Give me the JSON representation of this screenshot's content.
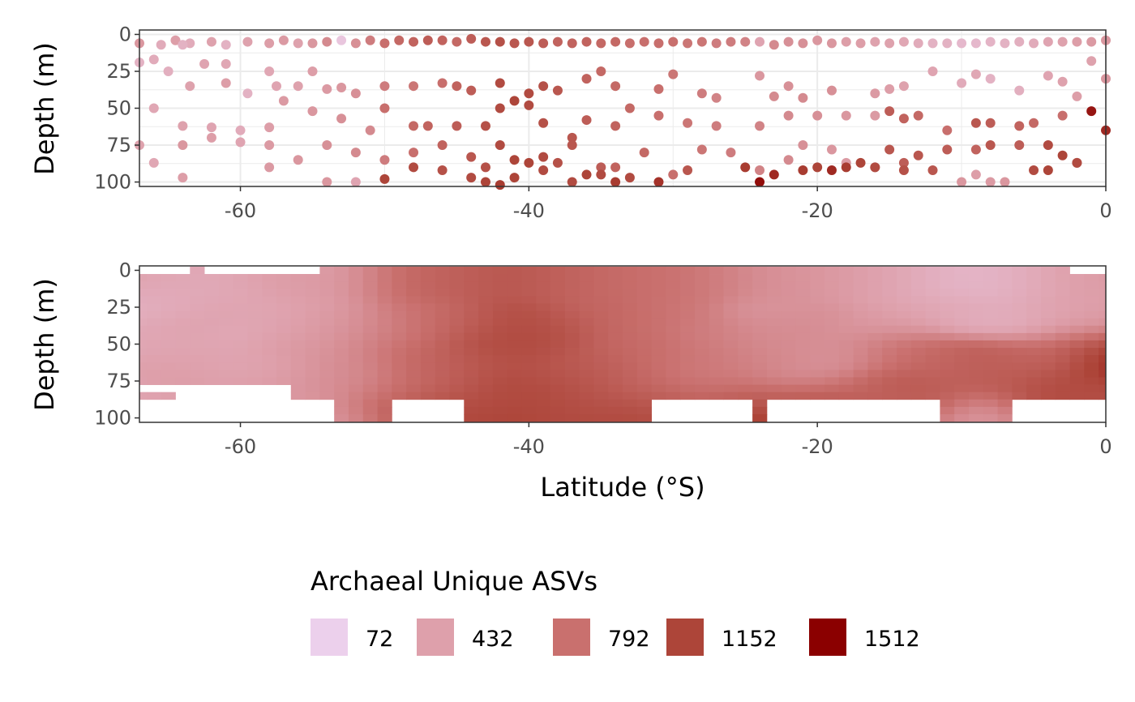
{
  "chart_data": [
    {
      "type": "scatter",
      "ylabel": "Depth (m)",
      "xlabel": "",
      "xlim": [
        -67,
        0
      ],
      "ylim": [
        103,
        -3
      ],
      "x_ticks": [
        -60,
        -40,
        -20,
        0
      ],
      "x_tick_labels": [
        "-60",
        "-40",
        "-20",
        "0"
      ],
      "y_ticks": [
        0,
        25,
        50,
        75,
        100
      ],
      "y_tick_labels": [
        "0",
        "25",
        "50",
        "75",
        "100"
      ],
      "grid": true,
      "color_variable": "Archaeal Unique ASVs",
      "points": [
        [
          -67,
          6,
          500
        ],
        [
          -65.5,
          7,
          350
        ],
        [
          -64.5,
          4,
          450
        ],
        [
          -63.5,
          6,
          350
        ],
        [
          -62,
          5,
          420
        ],
        [
          -61,
          7,
          300
        ],
        [
          -59.5,
          5,
          420
        ],
        [
          -58,
          6,
          450
        ],
        [
          -57,
          4,
          480
        ],
        [
          -56,
          6,
          420
        ],
        [
          -55,
          6,
          500
        ],
        [
          -54,
          5,
          600
        ],
        [
          -53,
          4,
          150
        ],
        [
          -52,
          6,
          560
        ],
        [
          -51,
          4,
          700
        ],
        [
          -50,
          6,
          800
        ],
        [
          -49,
          4,
          850
        ],
        [
          -48,
          5,
          900
        ],
        [
          -47,
          4,
          950
        ],
        [
          -46,
          4,
          900
        ],
        [
          -45,
          5,
          850
        ],
        [
          -44,
          3,
          950
        ],
        [
          -43,
          5,
          1000
        ],
        [
          -42,
          5,
          1050
        ],
        [
          -41,
          6,
          1000
        ],
        [
          -40,
          5,
          1000
        ],
        [
          -39,
          6,
          950
        ],
        [
          -38,
          5,
          900
        ],
        [
          -37,
          6,
          900
        ],
        [
          -36,
          5,
          900
        ],
        [
          -35,
          6,
          850
        ],
        [
          -34,
          5,
          850
        ],
        [
          -33,
          6,
          800
        ],
        [
          -32,
          5,
          800
        ],
        [
          -31,
          6,
          800
        ],
        [
          -30,
          5,
          800
        ],
        [
          -29,
          6,
          750
        ],
        [
          -28,
          5,
          750
        ],
        [
          -27,
          6,
          700
        ],
        [
          -26,
          5,
          700
        ],
        [
          -25,
          5,
          650
        ],
        [
          -24,
          5,
          400
        ],
        [
          -23,
          7,
          600
        ],
        [
          -22,
          5,
          550
        ],
        [
          -21,
          6,
          550
        ],
        [
          -20,
          4,
          500
        ],
        [
          -19,
          6,
          500
        ],
        [
          -18,
          5,
          450
        ],
        [
          -17,
          6,
          450
        ],
        [
          -16,
          5,
          420
        ],
        [
          -15,
          6,
          420
        ],
        [
          -14,
          5,
          380
        ],
        [
          -13,
          6,
          350
        ],
        [
          -12,
          6,
          300
        ],
        [
          -11,
          6,
          300
        ],
        [
          -10,
          6,
          250
        ],
        [
          -9,
          6,
          250
        ],
        [
          -8,
          5,
          280
        ],
        [
          -7,
          6,
          300
        ],
        [
          -6,
          5,
          320
        ],
        [
          -5,
          6,
          350
        ],
        [
          -4,
          5,
          400
        ],
        [
          -3,
          5,
          420
        ],
        [
          -2,
          5,
          450
        ],
        [
          -1,
          5,
          480
        ],
        [
          0,
          4,
          500
        ],
        [
          -67,
          19,
          300
        ],
        [
          -66,
          17,
          350
        ],
        [
          -65,
          25,
          320
        ],
        [
          -64,
          7,
          300
        ],
        [
          -62.5,
          20,
          400
        ],
        [
          -61,
          20,
          380
        ],
        [
          -63.5,
          35,
          420
        ],
        [
          -61,
          33,
          450
        ],
        [
          -58,
          25,
          380
        ],
        [
          -59.5,
          40,
          300
        ],
        [
          -57.5,
          35,
          400
        ],
        [
          -56,
          35,
          420
        ],
        [
          -55,
          25,
          450
        ],
        [
          -54,
          37,
          480
        ],
        [
          -53,
          36,
          500
        ],
        [
          -52,
          40,
          550
        ],
        [
          -50,
          35,
          700
        ],
        [
          -48,
          35,
          750
        ],
        [
          -46,
          33,
          800
        ],
        [
          -45,
          35,
          900
        ],
        [
          -44,
          38,
          950
        ],
        [
          -42,
          33,
          1100
        ],
        [
          -41,
          45,
          1150
        ],
        [
          -40,
          40,
          1100
        ],
        [
          -39,
          35,
          1050
        ],
        [
          -38,
          38,
          1000
        ],
        [
          -36,
          30,
          900
        ],
        [
          -35,
          25,
          850
        ],
        [
          -34,
          35,
          850
        ],
        [
          -31,
          37,
          800
        ],
        [
          -30,
          27,
          750
        ],
        [
          -28,
          40,
          700
        ],
        [
          -27,
          43,
          650
        ],
        [
          -24,
          28,
          500
        ],
        [
          -23,
          42,
          600
        ],
        [
          -22,
          35,
          550
        ],
        [
          -21,
          43,
          600
        ],
        [
          -19,
          38,
          550
        ],
        [
          -16,
          40,
          480
        ],
        [
          -15,
          37,
          450
        ],
        [
          -14,
          35,
          420
        ],
        [
          -12,
          25,
          400
        ],
        [
          -10,
          33,
          350
        ],
        [
          -9,
          27,
          380
        ],
        [
          -8,
          30,
          300
        ],
        [
          -6,
          38,
          320
        ],
        [
          -4,
          28,
          400
        ],
        [
          -3,
          32,
          420
        ],
        [
          -2,
          42,
          450
        ],
        [
          0,
          30,
          500
        ],
        [
          -1,
          18,
          420
        ],
        [
          -66,
          50,
          380
        ],
        [
          -64,
          62,
          420
        ],
        [
          -62,
          63,
          400
        ],
        [
          -60,
          65,
          350
        ],
        [
          -58,
          63,
          450
        ],
        [
          -57,
          45,
          480
        ],
        [
          -55,
          52,
          500
        ],
        [
          -53,
          57,
          550
        ],
        [
          -51,
          65,
          600
        ],
        [
          -50,
          50,
          800
        ],
        [
          -48,
          62,
          850
        ],
        [
          -47,
          62,
          900
        ],
        [
          -45,
          62,
          950
        ],
        [
          -43,
          62,
          1050
        ],
        [
          -42,
          50,
          1100
        ],
        [
          -40,
          48,
          1100
        ],
        [
          -39,
          60,
          1050
        ],
        [
          -37,
          70,
          1000
        ],
        [
          -36,
          58,
          950
        ],
        [
          -34,
          62,
          900
        ],
        [
          -33,
          50,
          850
        ],
        [
          -31,
          55,
          800
        ],
        [
          -29,
          60,
          750
        ],
        [
          -27,
          62,
          700
        ],
        [
          -24,
          62,
          650
        ],
        [
          -22,
          55,
          600
        ],
        [
          -20,
          55,
          550
        ],
        [
          -18,
          55,
          500
        ],
        [
          -16,
          55,
          480
        ],
        [
          -15,
          52,
          950
        ],
        [
          -14,
          57,
          900
        ],
        [
          -13,
          55,
          850
        ],
        [
          -11,
          65,
          800
        ],
        [
          -9,
          60,
          1000
        ],
        [
          -8,
          60,
          950
        ],
        [
          -6,
          62,
          900
        ],
        [
          -5,
          60,
          850
        ],
        [
          -3,
          55,
          800
        ],
        [
          -1,
          52,
          1400
        ],
        [
          0,
          65,
          1300
        ],
        [
          -67,
          75,
          420
        ],
        [
          -64,
          75,
          500
        ],
        [
          -62,
          70,
          450
        ],
        [
          -60,
          73,
          400
        ],
        [
          -58,
          75,
          480
        ],
        [
          -56,
          85,
          500
        ],
        [
          -54,
          75,
          550
        ],
        [
          -52,
          80,
          600
        ],
        [
          -50,
          85,
          700
        ],
        [
          -48,
          80,
          800
        ],
        [
          -46,
          75,
          900
        ],
        [
          -44,
          83,
          1000
        ],
        [
          -43,
          90,
          1050
        ],
        [
          -42,
          75,
          1100
        ],
        [
          -41,
          85,
          1150
        ],
        [
          -40,
          87,
          1150
        ],
        [
          -39,
          83,
          1100
        ],
        [
          -38,
          87,
          1050
        ],
        [
          -37,
          75,
          1000
        ],
        [
          -35,
          90,
          950
        ],
        [
          -34,
          90,
          900
        ],
        [
          -32,
          80,
          850
        ],
        [
          -30,
          95,
          800
        ],
        [
          -28,
          78,
          750
        ],
        [
          -26,
          80,
          700
        ],
        [
          -24,
          92,
          650
        ],
        [
          -22,
          85,
          600
        ],
        [
          -21,
          75,
          550
        ],
        [
          -19,
          78,
          500
        ],
        [
          -18,
          87,
          480
        ],
        [
          -16,
          90,
          450
        ],
        [
          -15,
          78,
          1000
        ],
        [
          -14,
          87,
          950
        ],
        [
          -13,
          82,
          1000
        ],
        [
          -11,
          78,
          950
        ],
        [
          -9,
          78,
          900
        ],
        [
          -8,
          75,
          1000
        ],
        [
          -6,
          75,
          950
        ],
        [
          -4,
          75,
          1100
        ],
        [
          -3,
          82,
          1150
        ],
        [
          -2,
          87,
          1000
        ],
        [
          -66,
          87,
          380
        ],
        [
          -64,
          97,
          450
        ],
        [
          -58,
          90,
          480
        ],
        [
          -54,
          100,
          500
        ],
        [
          -52,
          100,
          400
        ],
        [
          -50,
          98,
          1150
        ],
        [
          -48,
          90,
          1100
        ],
        [
          -46,
          92,
          1050
        ],
        [
          -44,
          97,
          1100
        ],
        [
          -43,
          100,
          1150
        ],
        [
          -42,
          102,
          1200
        ],
        [
          -41,
          97,
          1150
        ],
        [
          -39,
          92,
          1100
        ],
        [
          -37,
          100,
          1100
        ],
        [
          -36,
          95,
          1150
        ],
        [
          -35,
          95,
          1100
        ],
        [
          -34,
          100,
          1200
        ],
        [
          -33,
          97,
          1100
        ],
        [
          -31,
          100,
          1250
        ],
        [
          -29,
          92,
          1000
        ],
        [
          -25,
          90,
          1200
        ],
        [
          -24,
          100,
          1450
        ],
        [
          -23,
          95,
          1300
        ],
        [
          -21,
          92,
          1200
        ],
        [
          -20,
          90,
          1150
        ],
        [
          -19,
          92,
          1300
        ],
        [
          -18,
          90,
          1200
        ],
        [
          -17,
          87,
          1150
        ],
        [
          -16,
          90,
          1100
        ],
        [
          -14,
          92,
          1050
        ],
        [
          -12,
          92,
          1000
        ],
        [
          -10,
          100,
          500
        ],
        [
          -9,
          95,
          450
        ],
        [
          -8,
          100,
          480
        ],
        [
          -7,
          100,
          500
        ],
        [
          -5,
          92,
          1100
        ],
        [
          -4,
          92,
          1150
        ],
        [
          -2,
          87,
          1100
        ]
      ]
    },
    {
      "type": "heatmap",
      "ylabel": "Depth (m)",
      "xlabel": "Latitude (°S)",
      "xlim": [
        -67,
        0
      ],
      "ylim": [
        103,
        -3
      ],
      "x_ticks": [
        -60,
        -40,
        -20,
        0
      ],
      "x_tick_labels": [
        "-60",
        "-40",
        "-20",
        "0"
      ],
      "y_ticks": [
        0,
        25,
        50,
        75,
        100
      ],
      "y_tick_labels": [
        "0",
        "25",
        "50",
        "75",
        "100"
      ],
      "color_variable": "Archaeal Unique ASVs",
      "x_resolution": 1,
      "y_resolution": 5
    }
  ],
  "legend": {
    "title": "Archaeal Unique ASVs",
    "breaks": [
      "72",
      "432",
      "792",
      "1152",
      "1512"
    ],
    "colors": [
      "#ecd0ec",
      "#dea0ab",
      "#c9706e",
      "#ad4539",
      "#8b0000"
    ],
    "scale_min": 72,
    "scale_max": 1512
  }
}
